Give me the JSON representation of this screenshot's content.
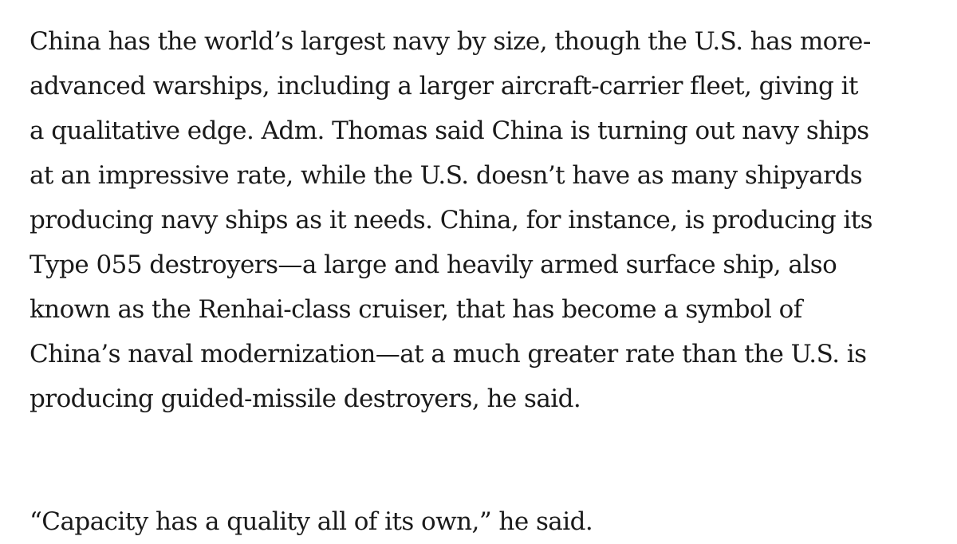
{
  "article": {
    "paragraphs": [
      {
        "lines": [
          "China has the world’s largest navy by size, though the U.S. has more-",
          "advanced warships, including a larger aircraft-carrier fleet, giving it",
          "a qualitative edge. Adm. Thomas said China is turning out navy ships",
          "at an impressive rate, while the U.S. doesn’t have as many shipyards",
          "producing navy ships as it needs. China, for instance, is producing its",
          "Type 055 destroyers—a large and heavily armed surface ship, also",
          "known as the Renhai-class cruiser, that has become a symbol of",
          "China’s naval modernization—at a much greater rate than the U.S. is",
          "producing guided-missile destroyers, he said."
        ]
      },
      {
        "lines": [
          "“Capacity has a quality all of its own,” he said."
        ]
      }
    ]
  }
}
